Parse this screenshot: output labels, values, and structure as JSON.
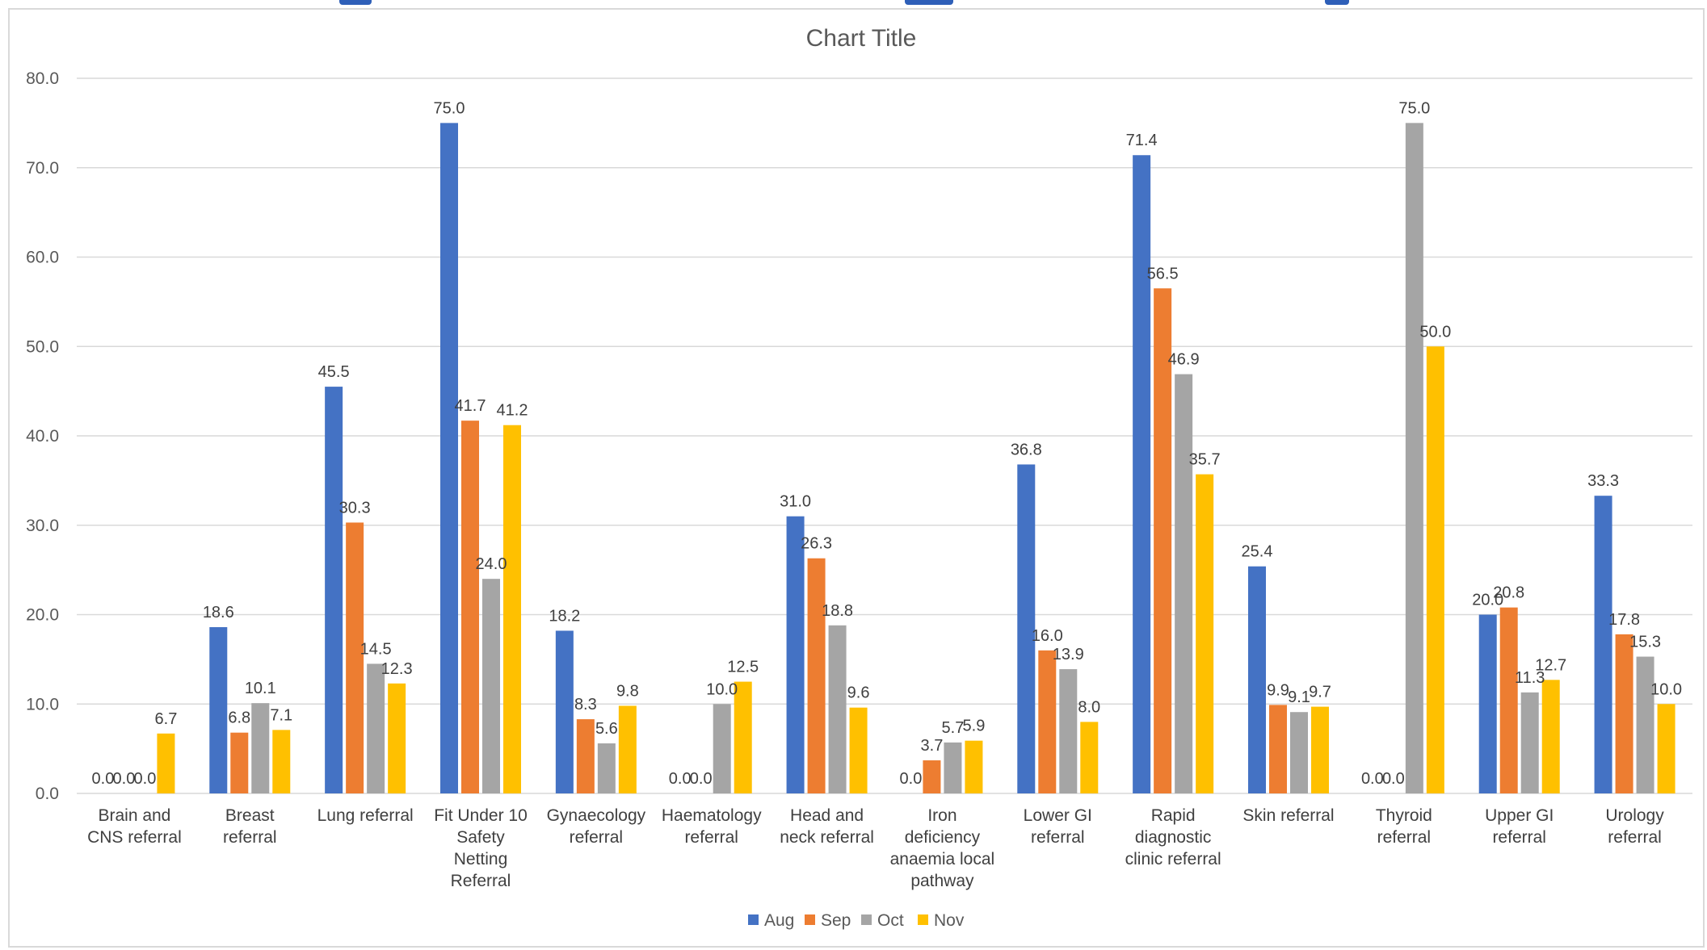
{
  "chart_data": {
    "type": "bar",
    "title": "Chart Title",
    "xlabel": "",
    "ylabel": "",
    "ylim": [
      0,
      80
    ],
    "yticks": [
      "0.0",
      "10.0",
      "20.0",
      "30.0",
      "40.0",
      "50.0",
      "60.0",
      "70.0",
      "80.0"
    ],
    "grid": true,
    "legend_position": "bottom",
    "categories": [
      [
        "Brain and",
        "CNS referral"
      ],
      [
        "Breast",
        "referral"
      ],
      [
        "Lung referral"
      ],
      [
        "Fit Under 10",
        "Safety",
        "Netting",
        "Referral"
      ],
      [
        "Gynaecology",
        "referral"
      ],
      [
        "Haematology",
        "referral"
      ],
      [
        "Head and",
        "neck referral"
      ],
      [
        "Iron",
        "deficiency",
        "anaemia local",
        "pathway"
      ],
      [
        "Lower GI",
        "referral"
      ],
      [
        "Rapid",
        "diagnostic",
        "clinic referral"
      ],
      [
        "Skin referral"
      ],
      [
        "Thyroid",
        "referral"
      ],
      [
        "Upper GI",
        "referral"
      ],
      [
        "Urology",
        "referral"
      ]
    ],
    "series": [
      {
        "name": "Aug",
        "color": "#4472c4",
        "values": [
          0.0,
          18.6,
          45.5,
          75.0,
          18.2,
          0.0,
          31.0,
          0.0,
          36.8,
          71.4,
          25.4,
          0.0,
          20.0,
          33.3
        ]
      },
      {
        "name": "Sep",
        "color": "#ed7d31",
        "values": [
          0.0,
          6.8,
          30.3,
          41.7,
          8.3,
          0.0,
          26.3,
          3.7,
          16.0,
          56.5,
          9.9,
          0.0,
          20.8,
          17.8
        ]
      },
      {
        "name": "Oct",
        "color": "#a5a5a5",
        "values": [
          0.0,
          10.1,
          14.5,
          24.0,
          5.6,
          10.0,
          18.8,
          5.7,
          13.9,
          46.9,
          9.1,
          75.0,
          11.3,
          15.3
        ]
      },
      {
        "name": "Nov",
        "color": "#ffc000",
        "values": [
          6.7,
          7.1,
          12.3,
          41.2,
          9.8,
          12.5,
          9.6,
          5.9,
          8.0,
          35.7,
          9.7,
          50.0,
          12.7,
          10.0
        ]
      }
    ],
    "data_label_format": "0.0"
  }
}
